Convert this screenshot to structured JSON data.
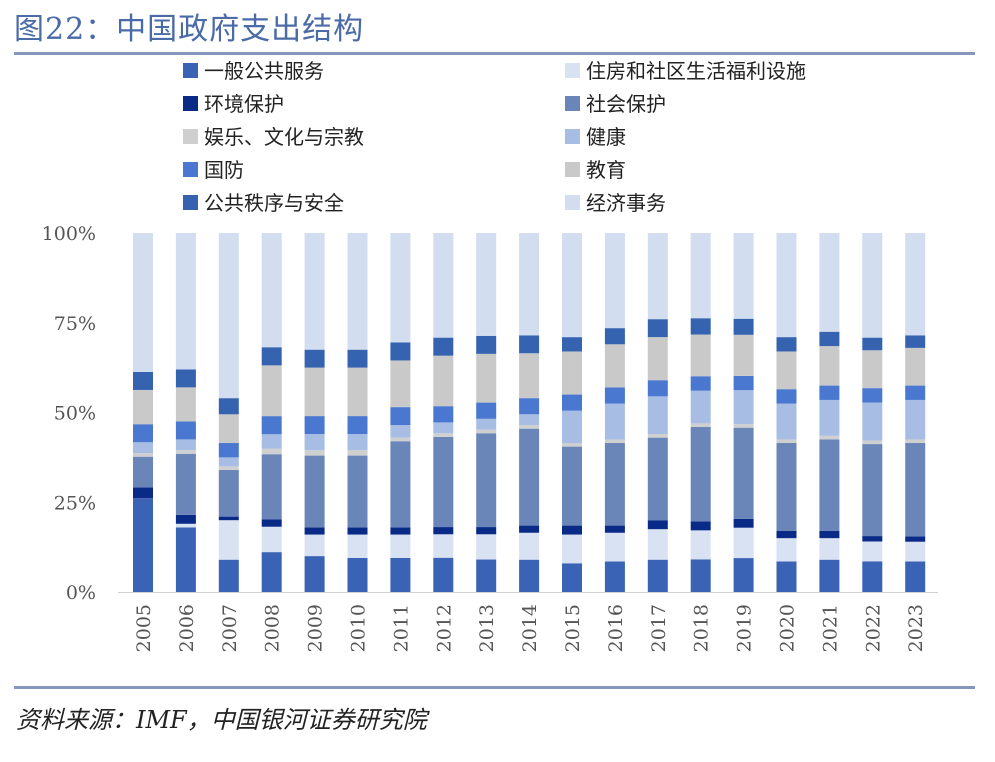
{
  "title": "图22：中国政府支出结构",
  "source": "资料来源：IMF，中国银河证券研究院",
  "chart_data": {
    "type": "bar",
    "stacked": true,
    "normalized": true,
    "title": "中国政府支出结构",
    "xlabel": "",
    "ylabel": "",
    "ylim": [
      0,
      100
    ],
    "yticks": [
      "0%",
      "25%",
      "50%",
      "75%",
      "100%"
    ],
    "categories": [
      "2005",
      "2006",
      "2007",
      "2008",
      "2009",
      "2010",
      "2011",
      "2012",
      "2013",
      "2014",
      "2015",
      "2016",
      "2017",
      "2018",
      "2019",
      "2020",
      "2021",
      "2022",
      "2023"
    ],
    "series": [
      {
        "name": "一般公共服务",
        "color": "#3a62b5",
        "values": [
          26,
          18,
          9,
          11,
          10,
          9.5,
          9.5,
          9.5,
          9,
          9,
          8,
          8.5,
          9,
          9,
          9.5,
          8.5,
          9,
          8.5,
          8.5
        ]
      },
      {
        "name": "住房和社区生活福利设施",
        "color": "#d9e2f2",
        "values": [
          0,
          1,
          11,
          7,
          6,
          6.5,
          6.5,
          6.5,
          7,
          7.5,
          8,
          8,
          8.5,
          8,
          8.5,
          6.5,
          6,
          5.5,
          5.5
        ]
      },
      {
        "name": "环境保护",
        "color": "#0a2a88",
        "values": [
          3,
          2.5,
          1,
          2,
          2,
          2,
          2,
          2,
          2,
          2,
          2.5,
          2,
          2.5,
          2.5,
          2.5,
          2,
          2,
          1.5,
          1.5
        ]
      },
      {
        "name": "社会保护",
        "color": "#6a86b9",
        "values": [
          8.5,
          17,
          13,
          18,
          20,
          20,
          24,
          25,
          26,
          27,
          22,
          23,
          23,
          26,
          25.5,
          24.5,
          25.5,
          25.5,
          26
        ]
      },
      {
        "name": "娱乐、文化与宗教",
        "color": "#cfcfcf",
        "values": [
          1,
          1,
          1,
          1.5,
          1.5,
          1.5,
          1,
          1,
          1,
          1,
          1,
          1,
          1,
          1,
          1,
          1,
          1,
          1,
          1
        ]
      },
      {
        "name": "健康",
        "color": "#a8bde4",
        "values": [
          3,
          3,
          2.5,
          4,
          4.5,
          4.5,
          3.5,
          3,
          3,
          3,
          9,
          10,
          10.5,
          9,
          9.5,
          10,
          10,
          10.5,
          11
        ]
      },
      {
        "name": "国防",
        "color": "#4a78d0",
        "values": [
          5,
          5,
          4,
          5,
          5,
          5,
          5,
          4.5,
          4.5,
          4.5,
          4.5,
          4.5,
          4.5,
          4,
          4,
          4,
          4,
          4,
          4
        ]
      },
      {
        "name": "教育",
        "color": "#c9c9c9",
        "values": [
          9.5,
          9.5,
          8,
          14,
          13.5,
          13.5,
          13,
          14,
          13.5,
          12.5,
          12,
          12,
          12,
          11.5,
          11.5,
          10.5,
          11,
          10.5,
          10.5
        ]
      },
      {
        "name": "公共秩序与安全",
        "color": "#3563b0",
        "values": [
          5,
          5,
          4.5,
          5,
          5,
          5,
          5,
          5,
          5,
          5,
          4,
          4.5,
          5,
          4.5,
          4.5,
          4,
          4,
          3.5,
          3.5
        ]
      },
      {
        "name": "经济事务",
        "color": "#d2ddf0",
        "values": [
          38.5,
          38,
          46,
          31.5,
          32.5,
          32.5,
          30.5,
          29,
          28.5,
          28.5,
          29,
          26.5,
          24,
          23.5,
          24,
          29,
          27.5,
          29,
          28.5
        ]
      }
    ]
  }
}
